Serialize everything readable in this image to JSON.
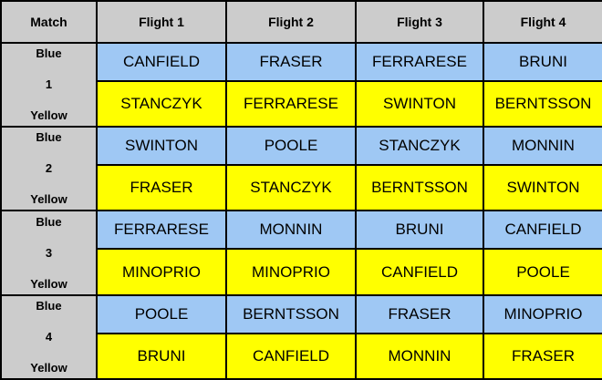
{
  "headers": [
    "Match",
    "Flight 1",
    "Flight 2",
    "Flight 3",
    "Flight 4"
  ],
  "matches": [
    {
      "blue_label": "Blue",
      "number": "1",
      "yellow_label": "Yellow",
      "blue": [
        "CANFIELD",
        "FRASER",
        "FERRARESE",
        "BRUNI"
      ],
      "yellow": [
        "STANCZYK",
        "FERRARESE",
        "SWINTON",
        "BERNTSSON"
      ]
    },
    {
      "blue_label": "Blue",
      "number": "2",
      "yellow_label": "Yellow",
      "blue": [
        "SWINTON",
        "POOLE",
        "STANCZYK",
        "MONNIN"
      ],
      "yellow": [
        "FRASER",
        "STANCZYK",
        "BERNTSSON",
        "SWINTON"
      ]
    },
    {
      "blue_label": "Blue",
      "number": "3",
      "yellow_label": "Yellow",
      "blue": [
        "FERRARESE",
        "MONNIN",
        "BRUNI",
        "CANFIELD"
      ],
      "yellow": [
        "MINOPRIO",
        "MINOPRIO",
        "CANFIELD",
        "POOLE"
      ]
    },
    {
      "blue_label": "Blue",
      "number": "4",
      "yellow_label": "Yellow",
      "blue": [
        "POOLE",
        "BERNTSSON",
        "FRASER",
        "MINOPRIO"
      ],
      "yellow": [
        "BRUNI",
        "CANFIELD",
        "MONNIN",
        "FRASER"
      ]
    }
  ],
  "colors": {
    "blue": "#9fc8f4",
    "yellow": "#ffff00",
    "header": "#cccccc"
  }
}
